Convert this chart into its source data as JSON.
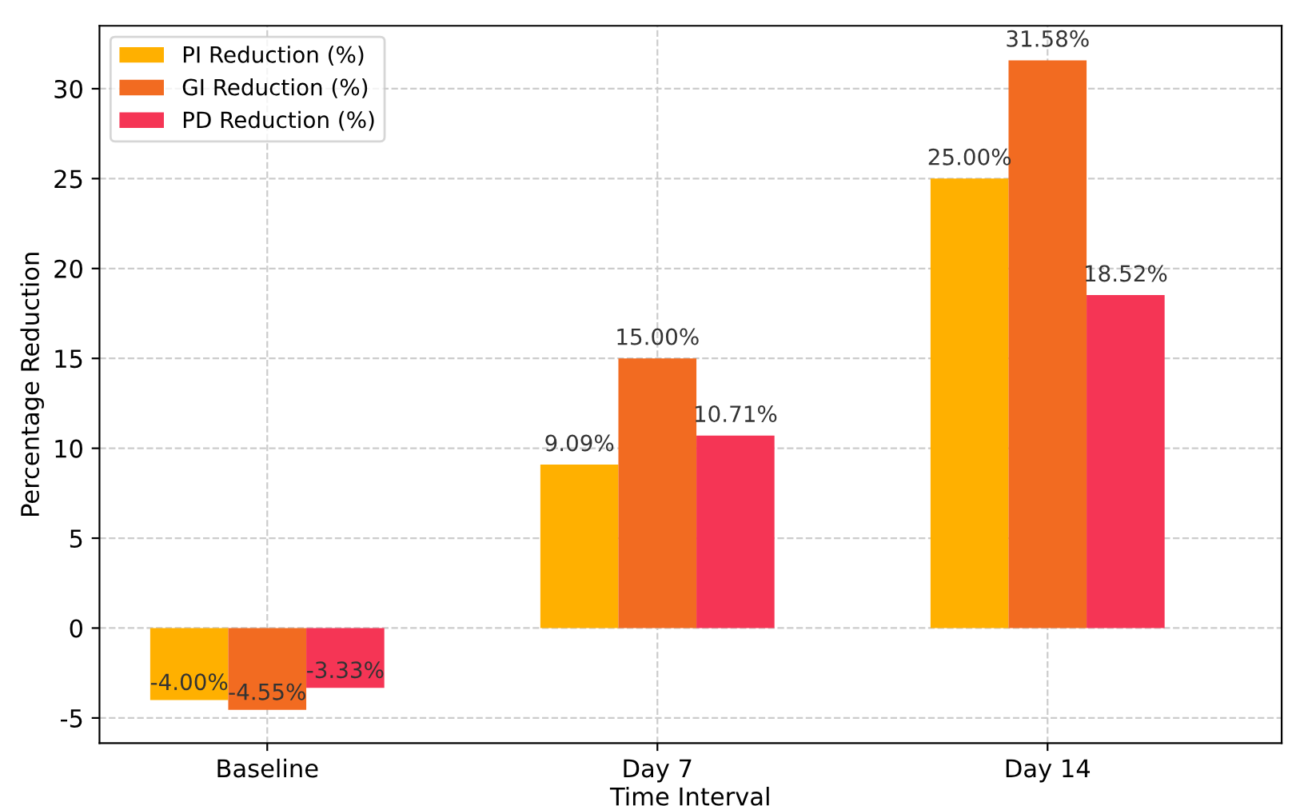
{
  "chart_data": {
    "type": "bar",
    "xlabel": "Time Interval",
    "ylabel": "Percentage Reduction",
    "categories": [
      "Baseline",
      "Day 7",
      "Day 14"
    ],
    "series": [
      {
        "name": "PI Reduction (%)",
        "color": "#ffb000",
        "values": [
          -4.0,
          9.09,
          25.0
        ],
        "value_labels": [
          "-4.00%",
          "9.09%",
          "25.00%"
        ]
      },
      {
        "name": "GI Reduction (%)",
        "color": "#f26b21",
        "values": [
          -4.55,
          15.0,
          31.58
        ],
        "value_labels": [
          "-4.55%",
          "15.00%",
          "31.58%"
        ]
      },
      {
        "name": "PD Reduction (%)",
        "color": "#f53555",
        "values": [
          -3.33,
          10.71,
          18.52
        ],
        "value_labels": [
          "-3.33%",
          "10.71%",
          "18.52%"
        ]
      }
    ],
    "ylim": [
      -6.4,
      33.5
    ],
    "yticks": [
      -5,
      0,
      5,
      10,
      15,
      20,
      25,
      30
    ],
    "grid": true,
    "legend": "top left"
  }
}
